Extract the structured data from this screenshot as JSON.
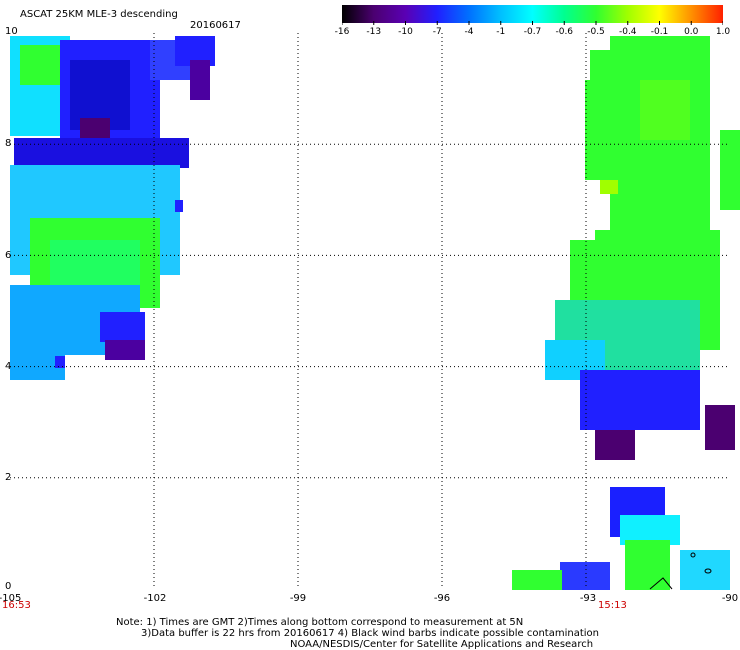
{
  "title": "ASCAT 25KM MLE-3 descending",
  "date": "20160617",
  "colorbar": {
    "ticks": [
      "-16",
      "-13",
      "-10",
      "-7",
      "-4",
      "-1",
      "-0.7",
      "-0.6",
      "-0.5",
      "-0.4",
      "-0.1",
      "0.0",
      "1.0"
    ],
    "colors": [
      "#000000",
      "#4b0070",
      "#5a00b4",
      "#2020ff",
      "#0070ff",
      "#00c0ff",
      "#00ffff",
      "#00ff90",
      "#30ff30",
      "#a0ff00",
      "#ffff00",
      "#ff9000",
      "#ff2000"
    ]
  },
  "map": {
    "lon_min": -105,
    "lon_max": -90,
    "lat_min": 0,
    "lat_max": 10,
    "x_ticks": [
      "-105",
      "-102",
      "-99",
      "-96",
      "-93",
      "-90"
    ],
    "y_ticks": [
      "10",
      "8",
      "6",
      "4",
      "2",
      "0"
    ]
  },
  "times": {
    "left": "16:53",
    "right": "15:13"
  },
  "notes": {
    "line1": "Note: 1) Times are GMT 2)Times along bottom correspond to measurement at 5N",
    "line2": "3)Data buffer is 22 hrs from 20160617 4) Black wind barbs indicate possible contamination",
    "line3": "NOAA/NESDIS/Center for Satellite Applications and Research"
  }
}
